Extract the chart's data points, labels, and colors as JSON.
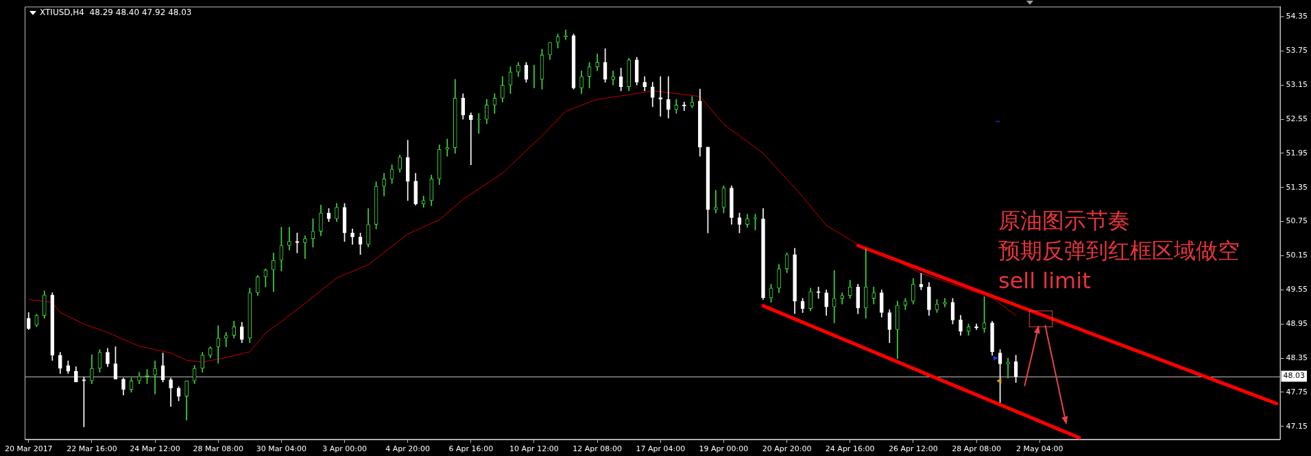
{
  "chart_data": {
    "type": "candlestick",
    "title": "XTIUSD,H4  48.29 48.40 47.92 48.03",
    "colors": [
      "#ffffff",
      "#3cdc3c",
      "#3cdc3c",
      "#ffffff",
      "#ffffff",
      "#ffffff",
      "#ffffff",
      "#ffffff",
      "#3cdc3c",
      "#3cdc3c",
      "#ffffff",
      "#ffffff",
      "#ffffff",
      "#3cdc3c",
      "#3cdc3c",
      "#3cdc3c",
      "#3cdc3c",
      "#ffffff",
      "#ffffff",
      "#ffffff",
      "#3cdc3c",
      "#3cdc3c",
      "#3cdc3c",
      "#3cdc3c",
      "#3cdc3c",
      "#3cdc3c",
      "#3cdc3c",
      "#ffffff",
      "#3cdc3c",
      "#3cdc3c",
      "#3cdc3c",
      "#3cdc3c",
      "#3cdc3c",
      "#3cdc3c",
      "#ffffff",
      "#3cdc3c",
      "#3cdc3c",
      "#3cdc3c",
      "#ffffff",
      "#3cdc3c",
      "#ffffff",
      "#ffffff",
      "#ffffff",
      "#3cdc3c",
      "#3cdc3c",
      "#3cdc3c",
      "#3cdc3c",
      "#3cdc3c",
      "#ffffff",
      "#ffffff",
      "#3cdc3c",
      "#3cdc3c",
      "#3cdc3c",
      "#3cdc3c",
      "#3cdc3c",
      "#ffffff",
      "#ffffff",
      "#3cdc3c",
      "#3cdc3c",
      "#3cdc3c",
      "#3cdc3c",
      "#3cdc3c",
      "#3cdc3c",
      "#ffffff",
      "#3cdc3c",
      "#3cdc3c",
      "#3cdc3c",
      "#3cdc3c",
      "#3cdc3c",
      "#ffffff",
      "#3cdc3c",
      "#3cdc3c",
      "#3cdc3c",
      "#ffffff",
      "#3cdc3c",
      "#ffffff",
      "#3cdc3c",
      "#ffffff",
      "#ffffff",
      "#ffffff",
      "#ffffff",
      "#ffffff",
      "#3cdc3c",
      "#ffffff",
      "#3cdc3c",
      "#ffffff",
      "#ffffff",
      "#3cdc3c",
      "#3cdc3c",
      "#ffffff",
      "#ffffff",
      "#3cdc3c",
      "#3cdc3c",
      "#ffffff",
      "#3cdc3c",
      "#3cdc3c",
      "#3cdc3c",
      "#ffffff",
      "#ffffff",
      "#3cdc3c",
      "#ffffff",
      "#ffffff",
      "#3cdc3c",
      "#3cdc3c",
      "#3cdc3c",
      "#ffffff",
      "#3cdc3c",
      "#3cdc3c",
      "#ffffff",
      "#ffffff",
      "#3cdc3c",
      "#3cdc3c",
      "#3cdc3c",
      "#ffffff",
      "#ffffff",
      "#3cdc3c",
      "#3cdc3c",
      "#ffffff",
      "#ffffff",
      "#3cdc3c",
      "#ffffff",
      "#3cdc3c",
      "#ffffff",
      "#ffffff",
      "#3cdc3c",
      "#ffffff",
      null,
      null,
      null,
      null,
      null,
      null,
      null,
      null,
      null,
      null,
      null,
      null,
      null,
      null,
      null,
      null,
      null,
      null,
      null,
      null,
      null,
      null,
      null,
      null,
      null,
      null,
      null,
      null,
      null,
      null,
      null,
      null,
      null
    ],
    "categories": [
      "20 Mar 2017",
      null,
      null,
      null,
      null,
      null,
      null,
      null,
      "22 Mar 16:00",
      null,
      null,
      null,
      null,
      null,
      null,
      null,
      "24 Mar 12:00",
      null,
      null,
      null,
      null,
      null,
      null,
      null,
      "28 Mar 08:00",
      null,
      null,
      null,
      null,
      null,
      null,
      null,
      "30 Mar 04:00",
      null,
      null,
      null,
      null,
      null,
      null,
      null,
      "3 Apr 00:00",
      null,
      null,
      null,
      null,
      null,
      null,
      null,
      "4 Apr 20:00",
      null,
      null,
      null,
      null,
      null,
      null,
      null,
      "6 Apr 16:00",
      null,
      null,
      null,
      null,
      null,
      null,
      null,
      "10 Apr 12:00",
      null,
      null,
      null,
      null,
      null,
      null,
      null,
      "12 Apr 08:00",
      null,
      null,
      null,
      null,
      null,
      null,
      null,
      "17 Apr 04:00",
      null,
      null,
      null,
      null,
      null,
      null,
      null,
      "19 Apr 00:00",
      null,
      null,
      null,
      null,
      null,
      null,
      null,
      "20 Apr 20:00",
      null,
      null,
      null,
      null,
      null,
      null,
      null,
      "24 Apr 16:00",
      null,
      null,
      null,
      null,
      null,
      null,
      null,
      "26 Apr 12:00",
      null,
      null,
      null,
      null,
      null,
      null,
      null,
      "28 Apr 08:00",
      null,
      null,
      null,
      null,
      null,
      null,
      null,
      "2 May 04:00",
      null,
      null,
      null,
      null,
      null,
      null,
      null,
      null,
      null,
      null,
      null,
      null,
      null,
      null,
      null,
      null,
      null,
      null,
      null,
      null,
      null,
      null,
      null,
      null,
      null,
      null,
      null,
      null,
      null,
      null
    ],
    "ohlc": [
      [
        49.05,
        49.15,
        48.85,
        48.87
      ],
      [
        48.93,
        49.12,
        48.9,
        49.1
      ],
      [
        49.1,
        49.53,
        49.05,
        49.46
      ],
      [
        49.46,
        49.5,
        48.31,
        48.4
      ],
      [
        48.4,
        48.45,
        48.08,
        48.17
      ],
      [
        48.22,
        48.3,
        48.08,
        48.12
      ],
      [
        48.12,
        48.2,
        47.93,
        47.93
      ],
      [
        47.97,
        48.02,
        47.14,
        47.95
      ],
      [
        47.95,
        48.41,
        47.9,
        48.17
      ],
      [
        48.17,
        48.5,
        48.1,
        48.45
      ],
      [
        48.45,
        48.52,
        48.2,
        48.25
      ],
      [
        48.25,
        48.55,
        47.98,
        47.98
      ],
      [
        47.98,
        48.0,
        47.7,
        47.8
      ],
      [
        47.8,
        48.0,
        47.75,
        47.95
      ],
      [
        47.95,
        48.1,
        47.9,
        48.03
      ],
      [
        48.03,
        48.15,
        47.9,
        48.05
      ],
      [
        48.05,
        48.3,
        47.72,
        48.17
      ],
      [
        48.22,
        48.44,
        47.93,
        47.97
      ],
      [
        47.97,
        48.0,
        47.5,
        47.82
      ],
      [
        47.82,
        47.85,
        47.6,
        47.68
      ],
      [
        47.68,
        47.95,
        47.26,
        47.95
      ],
      [
        47.95,
        48.22,
        47.9,
        48.17
      ],
      [
        48.17,
        48.45,
        48.1,
        48.4
      ],
      [
        48.4,
        48.55,
        48.35,
        48.53
      ],
      [
        48.55,
        48.92,
        48.26,
        48.7
      ],
      [
        48.7,
        48.8,
        48.55,
        48.75
      ],
      [
        48.75,
        49.0,
        48.7,
        48.9
      ],
      [
        48.9,
        48.98,
        48.62,
        48.68
      ],
      [
        48.7,
        49.58,
        48.62,
        49.5
      ],
      [
        49.5,
        49.8,
        49.45,
        49.78
      ],
      [
        49.78,
        49.92,
        49.6,
        49.9
      ],
      [
        49.9,
        50.2,
        49.52,
        50.07
      ],
      [
        50.07,
        50.65,
        49.88,
        50.33
      ],
      [
        50.33,
        50.65,
        50.25,
        50.4
      ],
      [
        50.4,
        50.55,
        50.2,
        50.38
      ],
      [
        50.38,
        50.5,
        50.1,
        50.45
      ],
      [
        50.45,
        50.8,
        50.3,
        50.58
      ],
      [
        50.58,
        51.04,
        50.5,
        50.9
      ],
      [
        50.9,
        50.98,
        50.75,
        50.8
      ],
      [
        50.8,
        51.07,
        50.75,
        51.0
      ],
      [
        51.0,
        51.07,
        50.4,
        50.55
      ],
      [
        50.55,
        50.62,
        50.35,
        50.48
      ],
      [
        50.48,
        50.55,
        50.17,
        50.35
      ],
      [
        50.35,
        50.98,
        50.3,
        50.7
      ],
      [
        50.7,
        51.45,
        50.62,
        51.37
      ],
      [
        51.37,
        51.6,
        51.2,
        51.5
      ],
      [
        51.5,
        51.75,
        51.42,
        51.67
      ],
      [
        51.67,
        51.92,
        51.62,
        51.88
      ],
      [
        51.88,
        52.18,
        51.12,
        51.46
      ],
      [
        51.46,
        51.6,
        51.04,
        51.06
      ],
      [
        51.06,
        51.2,
        51.0,
        51.12
      ],
      [
        51.12,
        51.57,
        51.03,
        51.5
      ],
      [
        51.5,
        52.1,
        51.4,
        52.02
      ],
      [
        52.02,
        52.2,
        51.9,
        52.05
      ],
      [
        52.05,
        53.25,
        51.95,
        52.92
      ],
      [
        52.92,
        53.0,
        52.55,
        52.62
      ],
      [
        52.62,
        52.66,
        51.75,
        52.54
      ],
      [
        52.54,
        52.65,
        52.3,
        52.55
      ],
      [
        52.55,
        52.9,
        52.47,
        52.8
      ],
      [
        52.8,
        53.0,
        52.65,
        52.92
      ],
      [
        52.92,
        53.3,
        52.85,
        53.15
      ],
      [
        53.15,
        53.47,
        53.0,
        53.38
      ],
      [
        53.38,
        53.55,
        53.3,
        53.5
      ],
      [
        53.5,
        53.55,
        53.2,
        53.25
      ],
      [
        53.25,
        53.5,
        53.1,
        53.25
      ],
      [
        53.25,
        53.78,
        53.08,
        53.68
      ],
      [
        53.68,
        53.9,
        53.6,
        53.9
      ],
      [
        53.9,
        54.05,
        53.8,
        54.0
      ],
      [
        54.0,
        54.12,
        53.95,
        54.02
      ],
      [
        54.02,
        54.05,
        53.08,
        53.1
      ],
      [
        53.1,
        53.4,
        53.0,
        53.3
      ],
      [
        53.3,
        53.55,
        53.1,
        53.47
      ],
      [
        53.47,
        53.7,
        53.4,
        53.55
      ],
      [
        53.55,
        53.79,
        53.2,
        53.25
      ],
      [
        53.25,
        53.4,
        53.15,
        53.3
      ],
      [
        53.3,
        53.45,
        53.05,
        53.12
      ],
      [
        53.12,
        53.62,
        53.05,
        53.59
      ],
      [
        53.59,
        53.64,
        53.15,
        53.2
      ],
      [
        53.2,
        53.3,
        53.05,
        53.12
      ],
      [
        53.12,
        53.2,
        52.77,
        52.93
      ],
      [
        52.93,
        53.3,
        52.6,
        52.9
      ],
      [
        52.9,
        53.3,
        52.57,
        52.72
      ],
      [
        52.72,
        52.9,
        52.65,
        52.8
      ],
      [
        52.8,
        52.85,
        52.7,
        52.78
      ],
      [
        52.78,
        52.95,
        52.75,
        52.85
      ],
      [
        52.87,
        53.08,
        51.9,
        52.06
      ],
      [
        52.06,
        52.06,
        50.55,
        50.96
      ],
      [
        50.96,
        51.3,
        50.9,
        51.0
      ],
      [
        51.0,
        51.38,
        50.9,
        51.34
      ],
      [
        51.34,
        51.38,
        50.7,
        50.82
      ],
      [
        50.82,
        50.9,
        50.55,
        50.7
      ],
      [
        50.7,
        50.88,
        50.65,
        50.8
      ],
      [
        50.8,
        50.88,
        50.6,
        50.82
      ],
      [
        50.8,
        50.98,
        49.38,
        49.41
      ],
      [
        49.41,
        49.65,
        49.33,
        49.58
      ],
      [
        49.58,
        50.0,
        49.5,
        49.92
      ],
      [
        49.92,
        50.2,
        49.85,
        50.17
      ],
      [
        50.17,
        50.28,
        49.13,
        49.35
      ],
      [
        49.35,
        49.4,
        49.15,
        49.22
      ],
      [
        49.22,
        49.58,
        49.18,
        49.52
      ],
      [
        49.52,
        49.6,
        49.4,
        49.5
      ],
      [
        49.5,
        49.55,
        49.1,
        49.25
      ],
      [
        49.25,
        49.89,
        48.97,
        49.4
      ],
      [
        49.4,
        49.5,
        49.3,
        49.45
      ],
      [
        49.45,
        49.72,
        49.4,
        49.6
      ],
      [
        49.6,
        49.65,
        49.13,
        49.23
      ],
      [
        49.23,
        50.27,
        49.05,
        49.6
      ],
      [
        49.4,
        49.6,
        49.3,
        49.5
      ],
      [
        49.5,
        49.55,
        49.07,
        49.15
      ],
      [
        49.15,
        49.2,
        48.62,
        48.85
      ],
      [
        48.85,
        49.35,
        48.34,
        49.28
      ],
      [
        49.28,
        49.4,
        49.2,
        49.35
      ],
      [
        49.35,
        49.75,
        49.3,
        49.65
      ],
      [
        49.65,
        49.84,
        49.55,
        49.6
      ],
      [
        49.6,
        49.68,
        49.1,
        49.2
      ],
      [
        49.2,
        49.38,
        49.15,
        49.3
      ],
      [
        49.3,
        49.4,
        49.25,
        49.33
      ],
      [
        49.33,
        49.4,
        48.95,
        49.02
      ],
      [
        49.02,
        49.1,
        48.75,
        48.82
      ],
      [
        48.82,
        48.95,
        48.75,
        48.9
      ],
      [
        48.9,
        48.95,
        48.85,
        48.88
      ],
      [
        48.87,
        49.43,
        48.8,
        48.97
      ],
      [
        48.97,
        49.0,
        48.4,
        48.46
      ],
      [
        48.44,
        48.5,
        47.57,
        48.25
      ],
      [
        48.25,
        48.35,
        48.0,
        48.28
      ],
      [
        48.29,
        48.4,
        47.92,
        48.03
      ],
      null,
      null,
      null,
      null,
      null,
      null,
      null,
      null,
      null,
      null,
      null,
      null,
      null,
      null,
      null,
      null,
      null,
      null,
      null,
      null,
      null,
      null,
      null,
      null,
      null,
      null,
      null,
      null,
      null,
      null,
      null,
      null,
      null
    ],
    "series": [
      {
        "type": "line",
        "color": "#c80000",
        "values": [
          49.38,
          null,
          null,
          49.33,
          49.15,
          null,
          null,
          48.95,
          null,
          null,
          48.8,
          null,
          null,
          null,
          48.56,
          null,
          null,
          null,
          48.44,
          null,
          48.31,
          null,
          48.28,
          null,
          null,
          48.36,
          null,
          null,
          48.46,
          null,
          48.79,
          null,
          null,
          null,
          49.2,
          null,
          null,
          null,
          null,
          49.76,
          null,
          null,
          null,
          49.99,
          null,
          null,
          null,
          null,
          50.53,
          null,
          null,
          null,
          50.78,
          null,
          null,
          51.14,
          null,
          null,
          null,
          null,
          51.6,
          null,
          null,
          null,
          null,
          52.26,
          null,
          null,
          52.69,
          null,
          null,
          null,
          52.9,
          null,
          null,
          null,
          52.98,
          null,
          null,
          53.05,
          null,
          null,
          53.0,
          null,
          null,
          52.95,
          null,
          null,
          52.46,
          null,
          null,
          null,
          null,
          51.95,
          null,
          null,
          null,
          null,
          51.19,
          null,
          null,
          50.68,
          null,
          null,
          null,
          50.35,
          null,
          null,
          null,
          50.12,
          null,
          null,
          null,
          49.84,
          null,
          null,
          null,
          null,
          null,
          null,
          null,
          null,
          49.41,
          null,
          null,
          49.1,
          null,
          null,
          null,
          null,
          null,
          null,
          null,
          null,
          null,
          null,
          null,
          null,
          null,
          null,
          null,
          null,
          null,
          null,
          null,
          null,
          null,
          null,
          null,
          null,
          null,
          null,
          null,
          null,
          null,
          null,
          null,
          null,
          null
        ]
      },
      {
        "type": "line",
        "color": "#ff0000",
        "values": [
          null,
          null,
          null,
          null,
          null,
          null,
          null,
          null,
          null,
          null,
          null,
          null,
          null,
          null,
          null,
          null,
          null,
          null,
          null,
          null,
          null,
          null,
          null,
          null,
          null,
          null,
          null,
          null,
          null,
          null,
          null,
          null,
          null,
          null,
          null,
          null,
          null,
          null,
          null,
          null,
          null,
          null,
          null,
          null,
          null,
          null,
          null,
          null,
          null,
          null,
          null,
          null,
          null,
          null,
          null,
          null,
          null,
          null,
          null,
          null,
          null,
          null,
          null,
          null,
          null,
          null,
          null,
          null,
          null,
          null,
          null,
          null,
          null,
          null,
          null,
          null,
          null,
          null,
          null,
          null,
          null,
          null,
          null,
          null,
          null,
          null,
          null,
          null,
          null,
          null,
          null,
          null,
          null,
          null,
          null,
          null,
          null,
          null,
          null,
          null,
          null,
          null,
          null,
          null,
          null,
          50.33,
          null,
          null,
          null,
          null,
          null,
          null,
          null,
          null,
          null,
          null,
          null,
          null,
          null,
          null,
          null,
          null,
          null,
          null,
          null,
          null,
          null,
          null,
          null,
          null,
          null,
          null,
          null,
          null,
          null,
          null,
          null,
          null,
          null,
          null,
          null,
          null,
          null,
          null,
          null,
          null,
          null,
          null,
          null,
          null,
          null,
          null,
          null,
          null,
          null,
          null,
          null,
          null,
          47.55
        ]
      },
      {
        "type": "line",
        "color": "#ff0000",
        "values": [
          null,
          null,
          null,
          null,
          null,
          null,
          null,
          null,
          null,
          null,
          null,
          null,
          null,
          null,
          null,
          null,
          null,
          null,
          null,
          null,
          null,
          null,
          null,
          null,
          null,
          null,
          null,
          null,
          null,
          null,
          null,
          null,
          null,
          null,
          null,
          null,
          null,
          null,
          null,
          null,
          null,
          null,
          null,
          null,
          null,
          null,
          null,
          null,
          null,
          null,
          null,
          null,
          null,
          null,
          null,
          null,
          null,
          null,
          null,
          null,
          null,
          null,
          null,
          null,
          null,
          null,
          null,
          null,
          null,
          null,
          null,
          null,
          null,
          null,
          null,
          null,
          null,
          null,
          null,
          null,
          null,
          null,
          null,
          null,
          null,
          null,
          null,
          null,
          null,
          null,
          null,
          null,
          null,
          49.27,
          null,
          null,
          null,
          null,
          null,
          null,
          null,
          null,
          null,
          null,
          null,
          null,
          null,
          null,
          null,
          null,
          null,
          null,
          null,
          null,
          null,
          null,
          null,
          null,
          null,
          null,
          null,
          null,
          null,
          null,
          null,
          null,
          null,
          null,
          null,
          null,
          null,
          null,
          null,
          46.95,
          null,
          null,
          null,
          null,
          null,
          null,
          null,
          null,
          null,
          null,
          null,
          null,
          null,
          null,
          null,
          null,
          null,
          null,
          null,
          null,
          null,
          null,
          null,
          null,
          null
        ]
      }
    ],
    "ylim": [
      46.92,
      54.53
    ],
    "yticks": [
      47.15,
      47.75,
      48.35,
      48.95,
      49.55,
      50.15,
      50.75,
      51.35,
      51.95,
      52.55,
      53.15,
      53.75,
      54.35
    ],
    "ref_lines": [
      {
        "axis": "y",
        "value": 48.03,
        "label": "48.03",
        "color": "#c0c0c0"
      }
    ],
    "annotations": [
      "原油图示节奏",
      "预期反弹到红框区域做空",
      "sell limit"
    ]
  }
}
